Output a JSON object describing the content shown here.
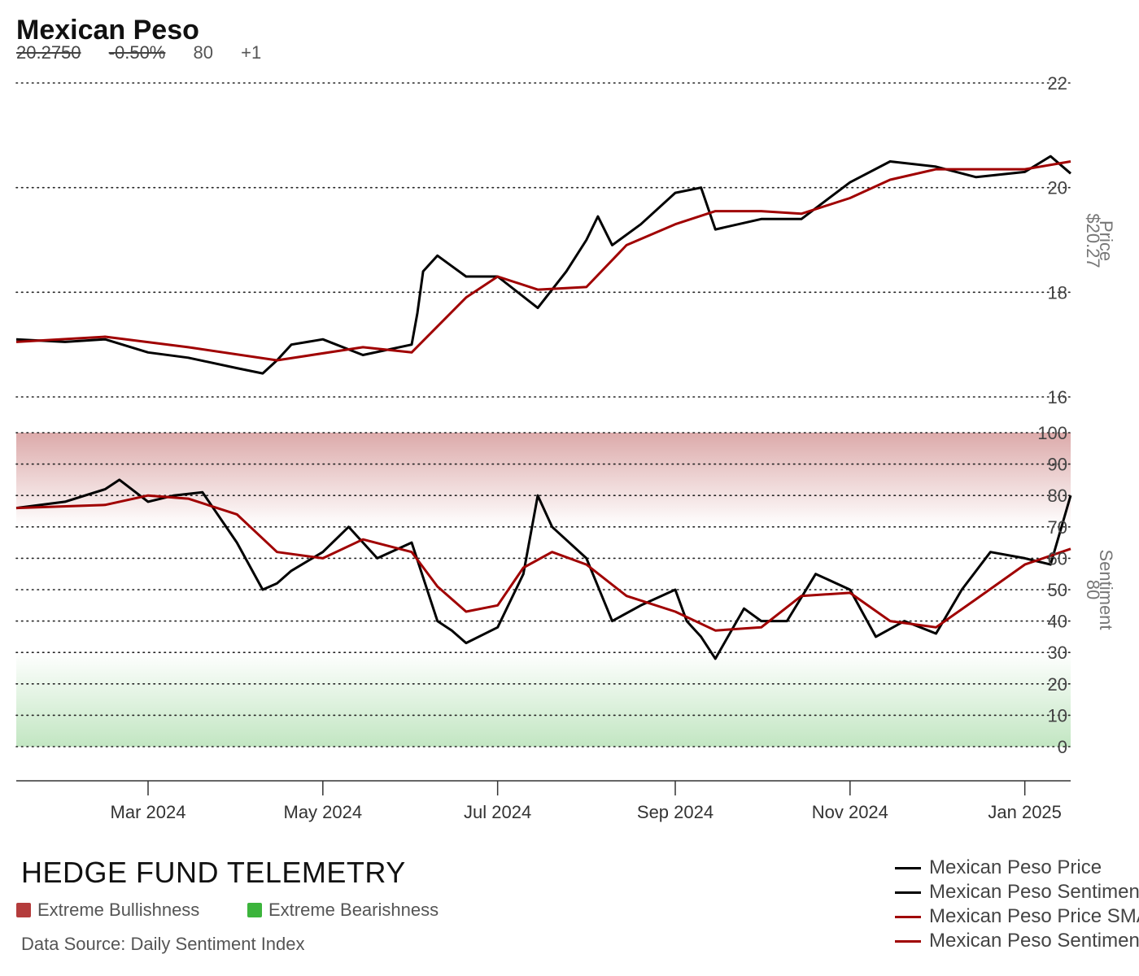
{
  "header": {
    "title": "Mexican Peso",
    "price": "20.2750",
    "change": "-0.50%",
    "sentiment": "80",
    "sentiment_change": "+1"
  },
  "brand": "HEDGE FUND TELEMETRY",
  "zones": {
    "bull_label": "Extreme Bullishness",
    "bear_label": "Extreme Bearishness",
    "bull_color": "#b43c3c",
    "bear_color": "#3cb43c"
  },
  "source": "Data Source: Daily Sentiment Index",
  "legend": [
    {
      "label": "Mexican Peso Price",
      "color": "#000000"
    },
    {
      "label": "Mexican Peso Sentiment",
      "color": "#000000"
    },
    {
      "label": "Mexican Peso Price SMA",
      "color": "#a00000"
    },
    {
      "label": "Mexican Peso Sentiment SMA",
      "color": "#a00000"
    }
  ],
  "chart_data": {
    "type": "line",
    "x_ticks": [
      "Mar 2024",
      "May 2024",
      "Jul 2024",
      "Sep 2024",
      "Nov 2024",
      "Jan 2025"
    ],
    "x_range": [
      "2024-01-15",
      "2025-01-17"
    ],
    "price_panel": {
      "ylabel": "Price",
      "current_label": "$20.27",
      "ylim": [
        16,
        22
      ],
      "yticks": [
        16,
        18,
        20,
        22
      ],
      "series": [
        {
          "name": "Mexican Peso Price",
          "color": "#000000",
          "x": [
            "2024-01-15",
            "2024-02-01",
            "2024-02-15",
            "2024-03-01",
            "2024-03-15",
            "2024-04-01",
            "2024-04-10",
            "2024-04-15",
            "2024-04-20",
            "2024-05-01",
            "2024-05-15",
            "2024-06-01",
            "2024-06-03",
            "2024-06-05",
            "2024-06-10",
            "2024-06-15",
            "2024-06-20",
            "2024-07-01",
            "2024-07-15",
            "2024-07-25",
            "2024-08-01",
            "2024-08-05",
            "2024-08-10",
            "2024-08-20",
            "2024-09-01",
            "2024-09-10",
            "2024-09-15",
            "2024-10-01",
            "2024-10-15",
            "2024-11-01",
            "2024-11-15",
            "2024-12-01",
            "2024-12-15",
            "2025-01-01",
            "2025-01-10",
            "2025-01-17"
          ],
          "y": [
            17.1,
            17.05,
            17.1,
            16.85,
            16.75,
            16.55,
            16.45,
            16.7,
            17.0,
            17.1,
            16.8,
            17.0,
            17.6,
            18.4,
            18.7,
            18.5,
            18.3,
            18.3,
            17.7,
            18.4,
            19.0,
            19.45,
            18.9,
            19.3,
            19.9,
            20.0,
            19.2,
            19.4,
            19.4,
            20.1,
            20.5,
            20.4,
            20.2,
            20.3,
            20.6,
            20.27
          ]
        },
        {
          "name": "Mexican Peso Price SMA",
          "color": "#a00000",
          "x": [
            "2024-01-15",
            "2024-02-15",
            "2024-03-15",
            "2024-04-15",
            "2024-05-15",
            "2024-06-01",
            "2024-06-20",
            "2024-07-01",
            "2024-07-15",
            "2024-08-01",
            "2024-08-15",
            "2024-09-01",
            "2024-09-15",
            "2024-10-01",
            "2024-10-15",
            "2024-11-01",
            "2024-11-15",
            "2024-12-01",
            "2024-12-15",
            "2025-01-01",
            "2025-01-17"
          ],
          "y": [
            17.05,
            17.15,
            16.95,
            16.7,
            16.95,
            16.85,
            17.9,
            18.3,
            18.05,
            18.1,
            18.9,
            19.3,
            19.55,
            19.55,
            19.5,
            19.8,
            20.15,
            20.35,
            20.35,
            20.35,
            20.5
          ]
        }
      ]
    },
    "sentiment_panel": {
      "ylabel": "Sentiment",
      "current_label": "80",
      "ylim": [
        0,
        100
      ],
      "yticks": [
        0,
        10,
        20,
        30,
        40,
        50,
        60,
        70,
        80,
        90,
        100
      ],
      "bull_zone": [
        70,
        100
      ],
      "bear_zone": [
        0,
        30
      ],
      "series": [
        {
          "name": "Mexican Peso Sentiment",
          "color": "#000000",
          "x": [
            "2024-01-15",
            "2024-02-01",
            "2024-02-15",
            "2024-02-20",
            "2024-03-01",
            "2024-03-10",
            "2024-03-20",
            "2024-04-01",
            "2024-04-10",
            "2024-04-15",
            "2024-04-20",
            "2024-05-01",
            "2024-05-10",
            "2024-05-20",
            "2024-06-01",
            "2024-06-10",
            "2024-06-15",
            "2024-06-20",
            "2024-07-01",
            "2024-07-10",
            "2024-07-15",
            "2024-07-20",
            "2024-08-01",
            "2024-08-10",
            "2024-08-20",
            "2024-09-01",
            "2024-09-05",
            "2024-09-10",
            "2024-09-15",
            "2024-09-25",
            "2024-10-01",
            "2024-10-10",
            "2024-10-20",
            "2024-11-01",
            "2024-11-10",
            "2024-11-20",
            "2024-12-01",
            "2024-12-10",
            "2024-12-20",
            "2025-01-01",
            "2025-01-10",
            "2025-01-17"
          ],
          "y": [
            76,
            78,
            82,
            85,
            78,
            80,
            81,
            65,
            50,
            52,
            56,
            62,
            70,
            60,
            65,
            40,
            37,
            33,
            38,
            55,
            80,
            70,
            60,
            40,
            45,
            50,
            40,
            35,
            28,
            44,
            40,
            40,
            55,
            50,
            35,
            40,
            36,
            50,
            62,
            60,
            58,
            80
          ]
        },
        {
          "name": "Mexican Peso Sentiment SMA",
          "color": "#a00000",
          "x": [
            "2024-01-15",
            "2024-02-15",
            "2024-03-01",
            "2024-03-15",
            "2024-04-01",
            "2024-04-15",
            "2024-05-01",
            "2024-05-15",
            "2024-06-01",
            "2024-06-10",
            "2024-06-20",
            "2024-07-01",
            "2024-07-10",
            "2024-07-20",
            "2024-08-01",
            "2024-08-15",
            "2024-09-01",
            "2024-09-15",
            "2024-10-01",
            "2024-10-15",
            "2024-11-01",
            "2024-11-15",
            "2024-12-01",
            "2024-12-15",
            "2025-01-01",
            "2025-01-17"
          ],
          "y": [
            76,
            77,
            80,
            79,
            74,
            62,
            60,
            66,
            62,
            51,
            43,
            45,
            57,
            62,
            58,
            48,
            43,
            37,
            38,
            48,
            49,
            40,
            38,
            47,
            58,
            63
          ]
        }
      ]
    }
  }
}
